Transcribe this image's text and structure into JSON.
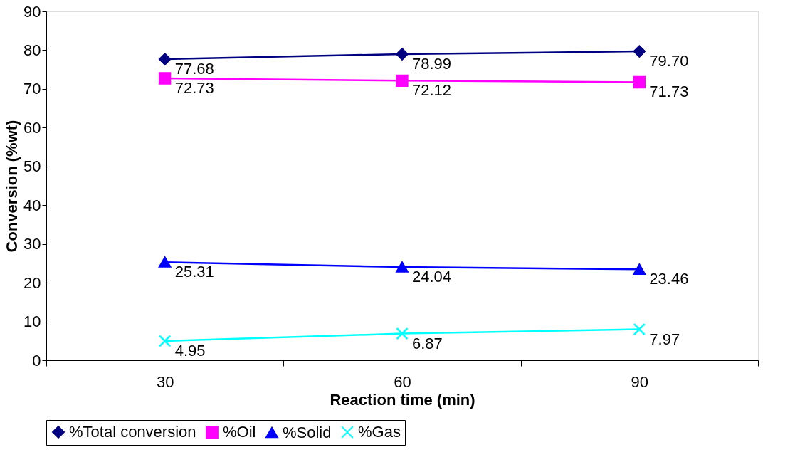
{
  "chart_data": {
    "type": "line",
    "xlabel": "Reaction time (min)",
    "ylabel": "Conversion (%wt)",
    "categories": [
      "30",
      "60",
      "90"
    ],
    "ylim": [
      0,
      90
    ],
    "yticks": [
      0,
      10,
      20,
      30,
      40,
      50,
      60,
      70,
      80,
      90
    ],
    "grid": false,
    "legend": "bottom",
    "line_style": "solid",
    "series": [
      {
        "name": "%Total conversion",
        "color": "#000080",
        "marker": "diamond",
        "values": [
          77.68,
          78.99,
          79.7
        ],
        "value_labels": [
          "77.68",
          "78.99",
          "79.70"
        ]
      },
      {
        "name": "%Oil",
        "color": "#ff00ff",
        "marker": "square",
        "values": [
          72.73,
          72.12,
          71.73
        ],
        "value_labels": [
          "72.73",
          "72.12",
          "71.73"
        ]
      },
      {
        "name": "%Solid",
        "color": "#0000ff",
        "marker": "triangle",
        "values": [
          25.31,
          24.04,
          23.46
        ],
        "value_labels": [
          "25.31",
          "24.04",
          "23.46"
        ]
      },
      {
        "name": "%Gas",
        "color": "#00ffff",
        "marker": "cross",
        "values": [
          4.95,
          6.87,
          7.97
        ],
        "value_labels": [
          "4.95",
          "6.87",
          "7.97"
        ]
      }
    ]
  }
}
